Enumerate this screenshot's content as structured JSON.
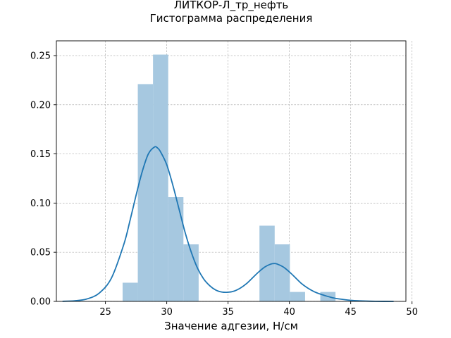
{
  "chart_data": {
    "type": "bar",
    "title_lines": [
      "ЛИТКОР-Л_тр_нефть",
      "Гистограмма распределения"
    ],
    "xlabel": "Значение адгезии, Н/см",
    "ylabel": "",
    "xlim": [
      21.0,
      49.5
    ],
    "ylim": [
      0,
      0.265
    ],
    "xticks": [
      25,
      30,
      35,
      40,
      45,
      50
    ],
    "yticks": [
      0.0,
      0.05,
      0.1,
      0.15,
      0.2,
      0.25
    ],
    "xtick_labels": [
      "25",
      "30",
      "35",
      "40",
      "45",
      "50"
    ],
    "ytick_labels": [
      "0.00",
      "0.05",
      "0.10",
      "0.15",
      "0.20",
      "0.25"
    ],
    "grid": true,
    "bar_color": "#a6c8e0",
    "line_color": "#1f77b4",
    "histogram": {
      "bin_edges": [
        26.4,
        27.64,
        28.88,
        30.12,
        31.36,
        32.6,
        33.84,
        35.08,
        36.32,
        37.56,
        38.8,
        40.04,
        41.28,
        42.52,
        43.76
      ],
      "densities": [
        0.019,
        0.221,
        0.251,
        0.106,
        0.058,
        0.0,
        0.0,
        0.0,
        0.0,
        0.077,
        0.058,
        0.0096,
        0.0,
        0.0096
      ]
    },
    "kde": {
      "x": [
        21.5,
        22.5,
        23.5,
        24.5,
        25.5,
        26.5,
        27.0,
        27.5,
        28.0,
        28.5,
        29.0,
        29.25,
        29.5,
        30.0,
        30.5,
        31.0,
        31.5,
        32.0,
        32.5,
        33.0,
        33.5,
        34.0,
        34.5,
        35.0,
        35.5,
        36.0,
        36.5,
        37.0,
        37.5,
        38.0,
        38.5,
        38.8,
        39.0,
        39.5,
        40.0,
        40.5,
        41.0,
        41.5,
        42.0,
        42.5,
        43.0,
        43.5,
        44.0,
        45.0,
        46.0,
        47.0,
        48.5
      ],
      "y": [
        0.0001,
        0.0006,
        0.0025,
        0.0085,
        0.024,
        0.058,
        0.082,
        0.108,
        0.132,
        0.15,
        0.157,
        0.156,
        0.152,
        0.139,
        0.118,
        0.094,
        0.07,
        0.05,
        0.034,
        0.023,
        0.016,
        0.0115,
        0.0095,
        0.0093,
        0.0105,
        0.0135,
        0.018,
        0.024,
        0.03,
        0.035,
        0.038,
        0.0385,
        0.038,
        0.035,
        0.03,
        0.024,
        0.018,
        0.0135,
        0.01,
        0.0075,
        0.0055,
        0.0038,
        0.0026,
        0.0011,
        0.0004,
        0.0001,
        0.0
      ]
    }
  }
}
